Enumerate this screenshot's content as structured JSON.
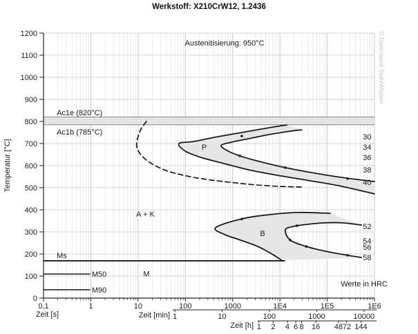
{
  "title": "Werkstoff: X210CrW12, 1.2436",
  "watermark": "© Datenbank StahlWissen",
  "colors": {
    "curve": "#1a1a1a",
    "grid_minor": "#e3e3e3",
    "grid_major": "#c9c9c9",
    "region_fill": "#e6e6e6",
    "band_fill": "#eaeaea",
    "band_line": "#7d7d7d",
    "band_inner_line": "#d5d5d5",
    "axis": "#222222",
    "text": "#1a1a1a",
    "watermark": "#c6c6c6"
  },
  "chart_data": {
    "type": "line",
    "title": "Werkstoff: X210CrW12, 1.2436",
    "x_scale": "log",
    "x_range_s": [
      0.1,
      1000000
    ],
    "y_range_c": [
      0,
      1200
    ],
    "grid": true,
    "y_axis": {
      "label": "Temperatur [°C]",
      "ticks": [
        0,
        100,
        200,
        300,
        400,
        500,
        600,
        700,
        800,
        900,
        1000,
        1100,
        1200
      ]
    },
    "x_axis_s": {
      "label": "Zeit [s]",
      "ticks": [
        {
          "t": 0.1,
          "label": "0,1"
        },
        {
          "t": 1,
          "label": "1"
        },
        {
          "t": 10,
          "label": "10"
        },
        {
          "t": 100,
          "label": "100"
        },
        {
          "t": 1000,
          "label": "1000"
        },
        {
          "t": 10000,
          "label": "1E4"
        },
        {
          "t": 100000,
          "label": "1E5"
        },
        {
          "t": 1000000,
          "label": "1E6"
        }
      ]
    },
    "x_axis_min": {
      "label": "Zeit [min]",
      "ticks": [
        1,
        10,
        100,
        1000,
        10000
      ]
    },
    "x_axis_h": {
      "label": "Zeit [h]",
      "ticks": [
        1,
        2,
        4,
        6,
        8,
        16,
        48,
        72,
        144
      ]
    },
    "band": {
      "ac1e_c": 820,
      "ac1b_c": 785
    },
    "series": [
      {
        "name": "carbide-precipitation",
        "style": "dashed",
        "points": [
          [
            15,
            800
          ],
          [
            11,
            756
          ],
          [
            9.4,
            684
          ],
          [
            15,
            625
          ],
          [
            39,
            578
          ],
          [
            126,
            550
          ],
          [
            370,
            534
          ],
          [
            1120,
            522
          ],
          [
            3400,
            512
          ],
          [
            10000,
            506
          ],
          [
            29000,
            503
          ]
        ]
      },
      {
        "name": "pearlite-start",
        "style": "solid",
        "points": [
          [
            14000,
            784
          ],
          [
            6000,
            772
          ],
          [
            1560,
            750
          ],
          [
            410,
            728
          ],
          [
            148,
            709
          ],
          [
            73,
            700
          ],
          [
            99,
            666
          ],
          [
            208,
            638
          ],
          [
            570,
            613
          ],
          [
            2190,
            581
          ],
          [
            10700,
            553
          ],
          [
            45000,
            531
          ],
          [
            206000,
            506
          ],
          [
            1000000,
            472
          ]
        ]
      },
      {
        "name": "pearlite-end",
        "style": "solid",
        "points": [
          [
            29000,
            762
          ],
          [
            16500,
            756
          ],
          [
            6000,
            741
          ],
          [
            2190,
            722
          ],
          [
            940,
            706
          ],
          [
            570,
            691
          ],
          [
            800,
            666
          ],
          [
            1420,
            644
          ],
          [
            3630,
            619
          ],
          [
            13000,
            591
          ],
          [
            54000,
            566
          ],
          [
            244000,
            544
          ],
          [
            1000000,
            528
          ]
        ]
      },
      {
        "name": "bainite-start",
        "style": "solid",
        "points": [
          [
            116000,
            384
          ],
          [
            23000,
            388
          ],
          [
            6000,
            378
          ],
          [
            1560,
            359
          ],
          [
            436,
            319
          ],
          [
            675,
            288
          ],
          [
            1320,
            266
          ],
          [
            3400,
            234
          ],
          [
            7100,
            197
          ],
          [
            10700,
            172
          ]
        ]
      },
      {
        "name": "bainite-end",
        "style": "solid",
        "points": [
          [
            530000,
            331
          ],
          [
            206000,
            341
          ],
          [
            89000,
            341
          ],
          [
            38000,
            334
          ],
          [
            19500,
            325
          ],
          [
            13000,
            309
          ],
          [
            16500,
            263
          ],
          [
            36000,
            234
          ],
          [
            89000,
            213
          ],
          [
            270000,
            194
          ],
          [
            530000,
            184
          ]
        ]
      },
      {
        "name": "ms-line",
        "style": "solid",
        "points": [
          [
            0.1,
            169
          ],
          [
            12600,
            169
          ]
        ]
      },
      {
        "name": "m50-line",
        "style": "thin",
        "points": [
          [
            0.1,
            109
          ],
          [
            0.95,
            109
          ]
        ]
      },
      {
        "name": "m90-line",
        "style": "thin",
        "points": [
          [
            0.1,
            38
          ],
          [
            0.95,
            38
          ]
        ]
      }
    ],
    "fills": [
      {
        "name": "pearlite-region",
        "points": [
          [
            14000,
            784
          ],
          [
            6000,
            772
          ],
          [
            1560,
            750
          ],
          [
            410,
            728
          ],
          [
            148,
            709
          ],
          [
            73,
            700
          ],
          [
            99,
            666
          ],
          [
            208,
            638
          ],
          [
            570,
            613
          ],
          [
            2190,
            581
          ],
          [
            10700,
            553
          ],
          [
            45000,
            531
          ],
          [
            206000,
            506
          ],
          [
            1000000,
            472
          ],
          [
            1000000,
            528
          ],
          [
            244000,
            544
          ],
          [
            54000,
            566
          ],
          [
            13000,
            591
          ],
          [
            3630,
            619
          ],
          [
            1420,
            644
          ],
          [
            800,
            666
          ],
          [
            570,
            691
          ],
          [
            940,
            706
          ],
          [
            2190,
            722
          ],
          [
            6000,
            741
          ],
          [
            16500,
            756
          ],
          [
            29000,
            762
          ]
        ]
      },
      {
        "name": "bainite-region",
        "points": [
          [
            116000,
            384
          ],
          [
            23000,
            388
          ],
          [
            6000,
            378
          ],
          [
            1560,
            359
          ],
          [
            436,
            319
          ],
          [
            675,
            288
          ],
          [
            1320,
            266
          ],
          [
            3400,
            234
          ],
          [
            7100,
            197
          ],
          [
            10700,
            172
          ],
          [
            404000,
            181
          ],
          [
            270000,
            194
          ],
          [
            89000,
            213
          ],
          [
            36000,
            234
          ],
          [
            16500,
            263
          ],
          [
            13000,
            309
          ],
          [
            19500,
            325
          ],
          [
            38000,
            334
          ],
          [
            89000,
            341
          ],
          [
            206000,
            341
          ],
          [
            530000,
            331
          ]
        ]
      }
    ],
    "dots": [
      [
        1560,
        734
      ],
      [
        1420,
        644
      ],
      [
        13000,
        591
      ],
      [
        270000,
        541
      ],
      [
        1560,
        358
      ],
      [
        23000,
        328
      ],
      [
        16500,
        263
      ],
      [
        36000,
        234
      ],
      [
        270000,
        194
      ]
    ],
    "annotations": [
      {
        "id": "austenitising",
        "text": "Austenitisierung: 950°C",
        "t": 676,
        "T": 1143,
        "anchor": "middle"
      },
      {
        "id": "ac1e",
        "text": "Ac1e (820°C)",
        "t": 0.19,
        "T": 828,
        "anchor": "start"
      },
      {
        "id": "ac1b",
        "text": "Ac1b (785°C)",
        "t": 0.19,
        "T": 741,
        "anchor": "start"
      },
      {
        "id": "pearlite",
        "text": "P",
        "t": 250,
        "T": 672,
        "anchor": "middle"
      },
      {
        "id": "bainite",
        "text": "B",
        "t": 4300,
        "T": 281,
        "anchor": "middle"
      },
      {
        "id": "austenite-carbide",
        "text": "A + K",
        "t": 14.3,
        "T": 369,
        "anchor": "middle"
      },
      {
        "id": "ms",
        "text": "Ms",
        "t": 0.19,
        "T": 181,
        "anchor": "start"
      },
      {
        "id": "m50",
        "text": "M50",
        "t": 1.05,
        "T": 97,
        "anchor": "start"
      },
      {
        "id": "m90",
        "text": "M90",
        "t": 1.05,
        "T": 25,
        "anchor": "start"
      },
      {
        "id": "martensite",
        "text": "M",
        "t": 15,
        "T": 98,
        "anchor": "middle"
      },
      {
        "id": "hardness-note",
        "text": "Werte in HRC",
        "t": 605000,
        "T": 53,
        "anchor": "middle"
      }
    ],
    "hrc_labels": [
      {
        "value": "30",
        "T": 719
      },
      {
        "value": "34",
        "T": 672
      },
      {
        "value": "36",
        "T": 625
      },
      {
        "value": "38",
        "T": 569
      },
      {
        "value": "40",
        "T": 513
      },
      {
        "value": "52",
        "T": 313
      },
      {
        "value": "54",
        "T": 247
      },
      {
        "value": "56",
        "T": 219
      },
      {
        "value": "58",
        "T": 172
      }
    ]
  }
}
